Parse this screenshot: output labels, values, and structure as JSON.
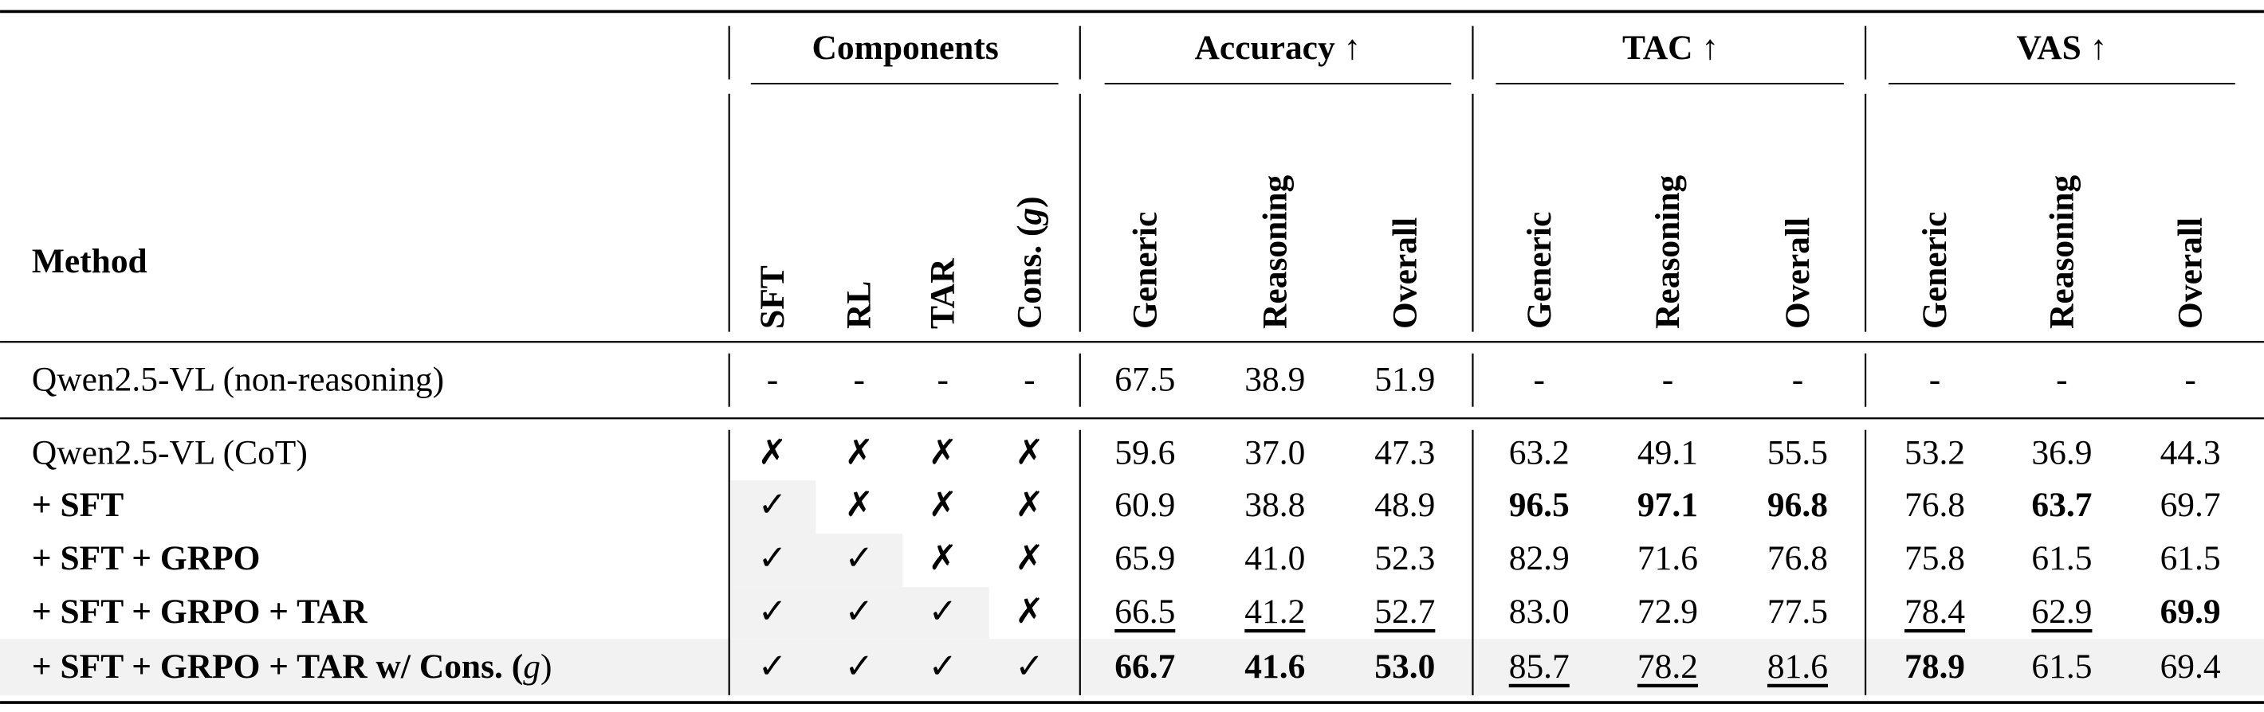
{
  "table": {
    "method_header": "Method",
    "groups": [
      "Components",
      "Accuracy ↑",
      "TAC ↑",
      "VAS ↑"
    ],
    "component_headers": [
      "SFT",
      "RL",
      "TAR",
      [
        {
          "text": "Cons. ("
        },
        {
          "text": "g",
          "style": "italic"
        },
        {
          "text": ")"
        }
      ]
    ],
    "metric_headers": [
      [
        "Generic",
        "Reasoning",
        "Overall"
      ],
      [
        "Generic",
        "Reasoning",
        "Overall"
      ],
      [
        "Generic",
        "Reasoning",
        "Overall"
      ]
    ],
    "rows": [
      {
        "method": "Qwen2.5-VL (non-reasoning)",
        "components": [
          "-",
          "-",
          "-",
          "-"
        ],
        "values": [
          "67.5",
          "38.9",
          "51.9",
          "-",
          "-",
          "-",
          "-",
          "-",
          "-"
        ]
      },
      {
        "method": "Qwen2.5-VL (CoT)",
        "components": [
          "✗",
          "✗",
          "✗",
          "✗"
        ],
        "values": [
          "59.6",
          "37.0",
          "47.3",
          "63.2",
          "49.1",
          "55.5",
          "53.2",
          "36.9",
          "44.3"
        ]
      },
      {
        "method": {
          "text": "+ SFT",
          "style": "bold"
        },
        "components": [
          "✓",
          "✗",
          "✗",
          "✗"
        ],
        "values": [
          "60.9",
          "38.8",
          "48.9",
          {
            "text": "96.5",
            "style": "bold"
          },
          {
            "text": "97.1",
            "style": "bold"
          },
          {
            "text": "96.8",
            "style": "bold"
          },
          "76.8",
          {
            "text": "63.7",
            "style": "bold"
          },
          "69.7"
        ]
      },
      {
        "method": {
          "text": "+ SFT + GRPO",
          "style": "bold"
        },
        "components": [
          "✓",
          "✓",
          "✗",
          "✗"
        ],
        "values": [
          "65.9",
          "41.0",
          "52.3",
          "82.9",
          "71.6",
          "76.8",
          "75.8",
          "61.5",
          "61.5"
        ]
      },
      {
        "method": {
          "text": "+ SFT + GRPO + TAR",
          "style": "bold"
        },
        "components": [
          "✓",
          "✓",
          "✓",
          "✗"
        ],
        "values": [
          {
            "text": "66.5",
            "style": "underline"
          },
          {
            "text": "41.2",
            "style": "underline"
          },
          {
            "text": "52.7",
            "style": "underline"
          },
          "83.0",
          "72.9",
          "77.5",
          {
            "text": "78.4",
            "style": "underline"
          },
          {
            "text": "62.9",
            "style": "underline"
          },
          {
            "text": "69.9",
            "style": "bold"
          }
        ]
      },
      {
        "method": [
          {
            "text": "+ SFT + GRPO + TAR w/ Cons. (",
            "style": "bold"
          },
          {
            "text": "g",
            "style": "italic"
          },
          {
            "text": ")"
          }
        ],
        "components": [
          "✓",
          "✓",
          "✓",
          "✓"
        ],
        "values": [
          {
            "text": "66.7",
            "style": "bold"
          },
          {
            "text": "41.6",
            "style": "bold"
          },
          {
            "text": "53.0",
            "style": "bold"
          },
          {
            "text": "85.7",
            "style": "underline"
          },
          {
            "text": "78.2",
            "style": "underline"
          },
          {
            "text": "81.6",
            "style": "underline"
          },
          {
            "text": "78.9",
            "style": "bold"
          },
          "61.5",
          "69.4"
        ]
      }
    ]
  }
}
